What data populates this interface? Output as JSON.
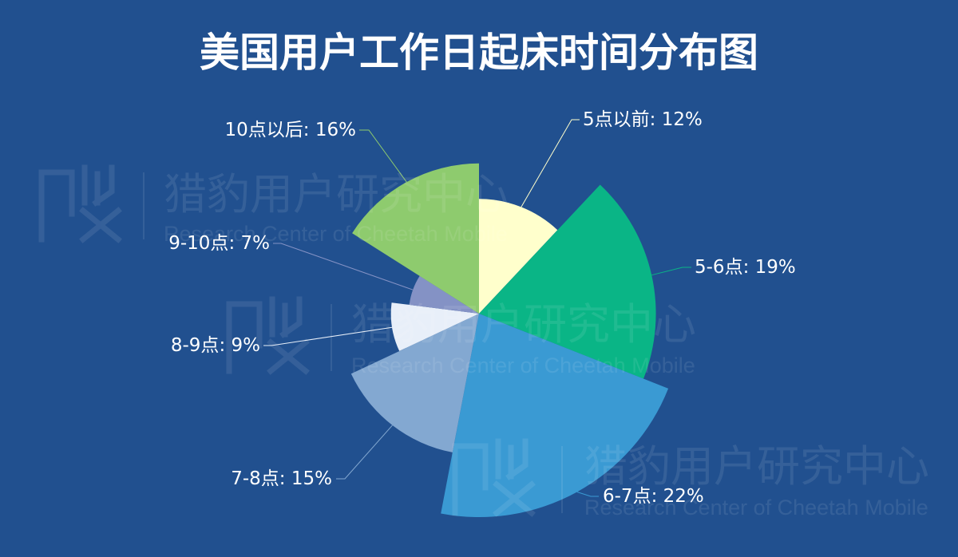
{
  "page": {
    "background": "#21508f"
  },
  "chart_data": {
    "type": "pie",
    "rose_type": "radius",
    "title": "美国用户工作日起床时间分布图",
    "categories": [
      "5点以前",
      "5-6点",
      "6-7点",
      "7-8点",
      "8-9点",
      "9-10点",
      "10点以后"
    ],
    "values": [
      12,
      19,
      22,
      15,
      9,
      7,
      16
    ],
    "unit": "%",
    "label_separator": ": ",
    "colors": [
      "#ffffcc",
      "#0ab586",
      "#3a9ad3",
      "#83a8d1",
      "#e8eff9",
      "#8492c5",
      "#8ecb6e"
    ]
  },
  "watermark": {
    "title": "猎豹用户研究中心",
    "subtitle": "Research Center of Cheetah Mobile",
    "logo_icon": "cheetah-logo-icon"
  }
}
